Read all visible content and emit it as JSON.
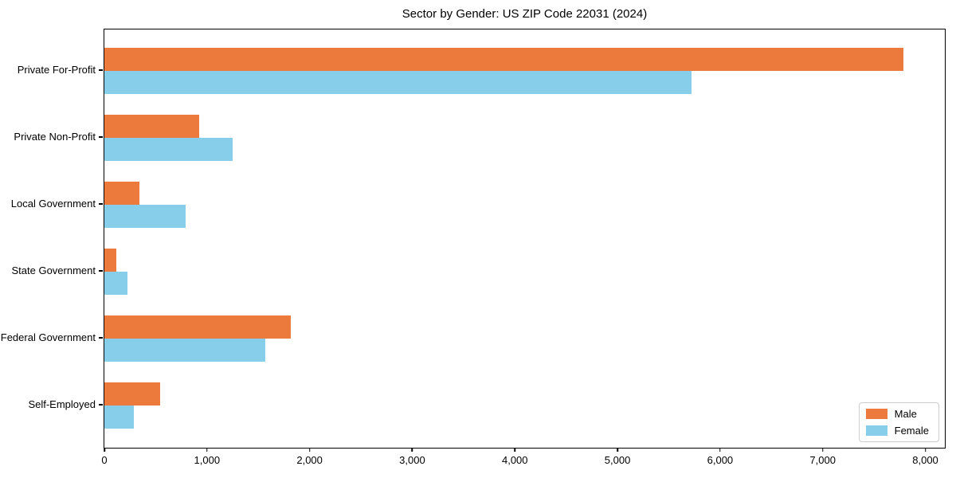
{
  "chart_data": {
    "type": "bar",
    "orientation": "horizontal",
    "title": "Sector by Gender: US ZIP Code 22031 (2024)",
    "categories": [
      "Private For-Profit",
      "Private Non-Profit",
      "Local Government",
      "State Government",
      "Federal Government",
      "Self-Employed"
    ],
    "series": [
      {
        "name": "Male",
        "color": "#EC7A3D",
        "values": [
          7790,
          920,
          340,
          120,
          1820,
          540
        ]
      },
      {
        "name": "Female",
        "color": "#87CEEB",
        "values": [
          5720,
          1250,
          795,
          225,
          1565,
          290
        ]
      }
    ],
    "xlabel": "",
    "ylabel": "",
    "xlim": [
      0,
      8190
    ],
    "x_ticks": [
      0,
      1000,
      2000,
      3000,
      4000,
      5000,
      6000,
      7000,
      8000
    ],
    "x_tick_labels": [
      "0",
      "1,000",
      "2,000",
      "3,000",
      "4,000",
      "5,000",
      "6,000",
      "7,000",
      "8,000"
    ],
    "grid": false,
    "legend": {
      "position": "lower right",
      "entries": [
        "Male",
        "Female"
      ]
    }
  }
}
